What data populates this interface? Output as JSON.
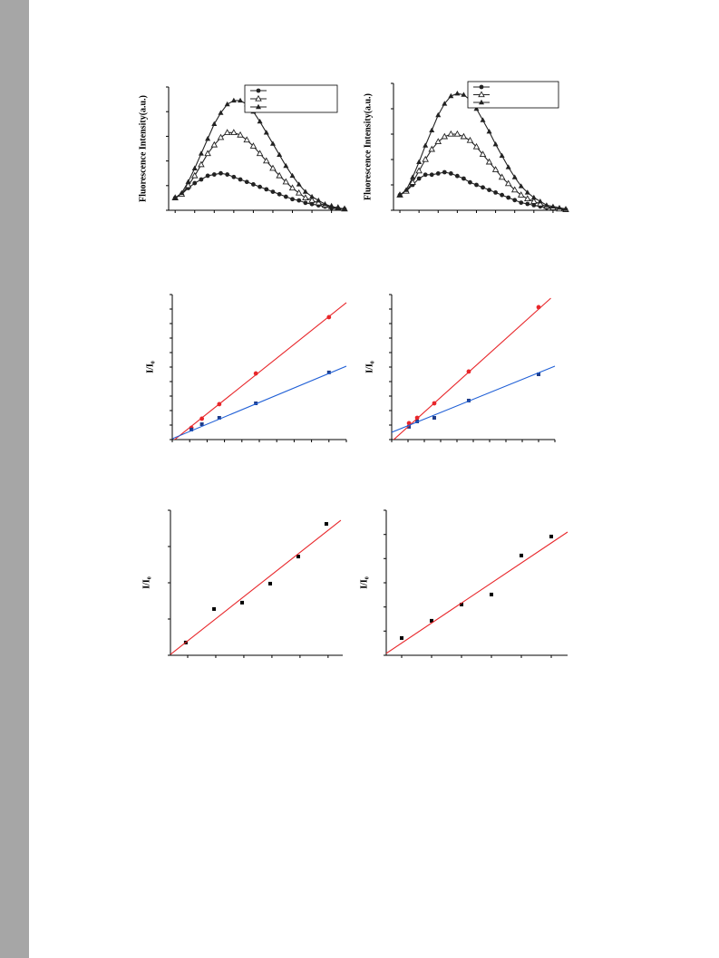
{
  "chart_data": [
    {
      "type": "line",
      "y_label": "Fluorescence Intensity(a.u.)",
      "x": [
        0,
        1,
        2,
        3,
        4,
        5,
        6,
        7,
        8,
        9,
        10,
        11,
        12,
        13,
        14,
        15,
        16,
        17,
        18,
        19,
        20,
        21,
        22,
        23,
        24,
        25,
        26
      ],
      "xlim": [
        -1,
        26
      ],
      "ylim": [
        0,
        100
      ],
      "xticks": [
        0,
        3,
        6,
        9,
        12,
        15,
        18,
        21,
        24
      ],
      "yticks": [
        0,
        20,
        40,
        60,
        80,
        100
      ],
      "legend": "upper right",
      "series": [
        {
          "color": "#222222",
          "marker": "circle",
          "values": [
            10,
            13,
            18,
            22,
            25,
            28,
            29,
            30,
            29,
            27,
            25,
            23,
            21,
            19,
            17,
            15,
            13,
            11,
            9,
            8,
            6,
            5,
            4,
            3,
            2,
            1.5,
            1
          ]
        },
        {
          "color": "#222222",
          "marker": "triangle-open",
          "values": [
            10,
            13,
            20,
            28,
            37,
            46,
            53,
            59,
            63,
            63,
            61,
            57,
            52,
            46,
            40,
            34,
            28,
            23,
            18,
            14,
            10,
            8,
            6,
            4,
            3,
            2,
            1
          ]
        },
        {
          "color": "#222222",
          "marker": "triangle",
          "values": [
            10,
            14,
            23,
            34,
            46,
            58,
            70,
            79,
            86,
            89,
            89,
            86,
            80,
            72,
            63,
            54,
            45,
            36,
            28,
            21,
            15,
            11,
            8,
            5,
            3,
            2,
            1
          ]
        }
      ]
    },
    {
      "type": "line",
      "y_label": "Fluorescence Intensity(a.u.)",
      "x": [
        0,
        1,
        2,
        3,
        4,
        5,
        6,
        7,
        8,
        9,
        10,
        11,
        12,
        13,
        14,
        15,
        16,
        17,
        18,
        19,
        20,
        21,
        22,
        23,
        24,
        25,
        26
      ],
      "xlim": [
        -1,
        26
      ],
      "ylim": [
        0,
        100
      ],
      "xticks": [
        0,
        3,
        6,
        9,
        12,
        15,
        18,
        21,
        24
      ],
      "yticks": [
        0,
        20,
        40,
        60,
        80,
        100
      ],
      "legend": "upper right",
      "series": [
        {
          "color": "#222222",
          "marker": "circle",
          "values": [
            12,
            15,
            20,
            25,
            28,
            28,
            29,
            30,
            29,
            27,
            25,
            22,
            20,
            18,
            16,
            14,
            12,
            10,
            8,
            6,
            5,
            4,
            3,
            2,
            1.5,
            1,
            0.5
          ]
        },
        {
          "color": "#222222",
          "marker": "triangle-open",
          "values": [
            12,
            15,
            22,
            31,
            40,
            48,
            54,
            58,
            60,
            60,
            58,
            55,
            50,
            44,
            38,
            32,
            26,
            21,
            16,
            12,
            9,
            7,
            5,
            3,
            2,
            1,
            0.5
          ]
        },
        {
          "color": "#222222",
          "marker": "triangle",
          "values": [
            12,
            16,
            26,
            38,
            51,
            63,
            75,
            84,
            90,
            92,
            91,
            87,
            80,
            71,
            62,
            52,
            43,
            34,
            26,
            19,
            14,
            10,
            7,
            4,
            3,
            2,
            1
          ]
        }
      ]
    },
    {
      "type": "scatter",
      "y_label": "I/I₀",
      "xlim": [
        0,
        10
      ],
      "ylim": [
        0,
        10
      ],
      "xticks": [
        0,
        1,
        2,
        3,
        4,
        5,
        6,
        7,
        8,
        9,
        10
      ],
      "yticks": [
        0,
        1,
        2,
        3,
        4,
        5,
        6,
        7,
        8,
        9,
        10
      ],
      "series": [
        {
          "color": "#e8262a",
          "marker": "circle",
          "x": [
            1.1,
            1.7,
            2.7,
            4.8,
            9.0
          ],
          "values": [
            0.81,
            1.44,
            2.44,
            4.56,
            8.44
          ]
        },
        {
          "color": "#1f3d8a",
          "marker": "square",
          "x": [
            1.1,
            1.7,
            2.7,
            4.8,
            9.0
          ],
          "values": [
            0.69,
            1.06,
            1.5,
            2.5,
            4.63
          ]
        },
        {
          "color": "#e8262a",
          "mode": "line",
          "x": [
            0,
            10
          ],
          "values": [
            -0.13,
            9.44
          ]
        },
        {
          "color": "#1f5fd6",
          "mode": "line",
          "x": [
            0,
            10
          ],
          "values": [
            0.06,
            5.06
          ]
        }
      ]
    },
    {
      "type": "scatter",
      "y_label": "I/I₀",
      "xlim": [
        0,
        10
      ],
      "ylim": [
        0,
        10
      ],
      "xticks": [
        0,
        1,
        2,
        3,
        4,
        5,
        6,
        7,
        8,
        9,
        10
      ],
      "yticks": [
        0,
        1,
        2,
        3,
        4,
        5,
        6,
        7,
        8,
        9,
        10
      ],
      "series": [
        {
          "color": "#e8262a",
          "marker": "circle",
          "x": [
            1.06,
            1.56,
            2.61,
            4.72,
            9.0
          ],
          "values": [
            1.13,
            1.5,
            2.5,
            4.69,
            9.13
          ]
        },
        {
          "color": "#1f3d8a",
          "marker": "square",
          "x": [
            1.06,
            1.56,
            2.61,
            4.72,
            9.0
          ],
          "values": [
            0.88,
            1.25,
            1.5,
            2.69,
            4.5
          ]
        },
        {
          "color": "#e8262a",
          "mode": "line",
          "x": [
            0,
            9.75
          ],
          "values": [
            -0.13,
            9.75
          ]
        },
        {
          "color": "#1f5fd6",
          "mode": "line",
          "x": [
            0,
            10
          ],
          "values": [
            0.5,
            5.06
          ]
        }
      ]
    },
    {
      "type": "scatter",
      "y_label": "I/I₀",
      "xlim": [
        0,
        10
      ],
      "ylim": [
        0,
        10
      ],
      "xticks": [
        1,
        2.63,
        4.26,
        5.89,
        7.52,
        9.15
      ],
      "yticks": [
        0,
        2.5,
        5,
        7.5,
        10
      ],
      "series": [
        {
          "color": "#000000",
          "marker": "square",
          "x": [
            0.89,
            2.53,
            4.16,
            5.79,
            7.42,
            9.05
          ],
          "values": [
            0.88,
            3.19,
            3.63,
            4.94,
            6.81,
            9.06
          ]
        },
        {
          "color": "#e8262a",
          "mode": "line",
          "x": [
            0,
            9.89
          ],
          "values": [
            0.06,
            9.31
          ]
        }
      ]
    },
    {
      "type": "scatter",
      "y_label": "I/I₀",
      "xlim": [
        0,
        10
      ],
      "ylim": [
        0,
        10
      ],
      "xticks": [
        0.85,
        2.5,
        4.15,
        5.8,
        7.45,
        9.1
      ],
      "yticks": [
        0,
        1.67,
        3.33,
        5,
        6.67,
        8.33,
        10
      ],
      "series": [
        {
          "color": "#000000",
          "marker": "square",
          "x": [
            0.85,
            2.5,
            4.15,
            5.8,
            7.45,
            9.1
          ],
          "values": [
            1.19,
            2.38,
            3.5,
            4.19,
            6.88,
            8.19
          ]
        },
        {
          "color": "#e8262a",
          "mode": "line",
          "x": [
            0,
            10
          ],
          "values": [
            0.13,
            8.5
          ]
        }
      ]
    }
  ]
}
